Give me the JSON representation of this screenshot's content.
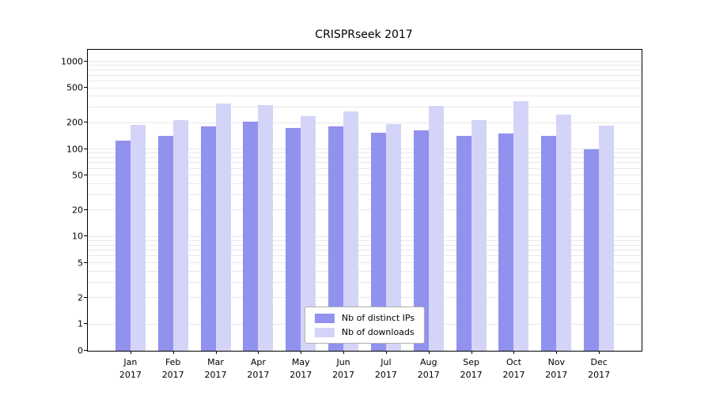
{
  "chart_data": {
    "type": "bar",
    "title": "CRISPRseek 2017",
    "categories": [
      "Jan 2017",
      "Feb 2017",
      "Mar 2017",
      "Apr 2017",
      "May 2017",
      "Jun 2017",
      "Jul 2017",
      "Aug 2017",
      "Sep 2017",
      "Oct 2017",
      "Nov 2017",
      "Dec 2017"
    ],
    "series": [
      {
        "name": "Nb of distinct IPs",
        "color": "#9191ee",
        "values": [
          125,
          140,
          180,
          205,
          175,
          180,
          155,
          165,
          140,
          150,
          140,
          100
        ]
      },
      {
        "name": "Nb of downloads",
        "color": "#d4d4f9",
        "values": [
          190,
          215,
          330,
          320,
          240,
          270,
          195,
          310,
          215,
          350,
          250,
          185
        ]
      }
    ],
    "y_ticks": [
      0,
      1,
      2,
      5,
      10,
      20,
      50,
      100,
      200,
      500,
      1000
    ],
    "y_scale": "symlog",
    "ylim": [
      0,
      1400
    ],
    "xlabel": "",
    "ylabel": "",
    "grid": "horizontal-log-minor",
    "legend_position": "bottom-center-inside"
  }
}
